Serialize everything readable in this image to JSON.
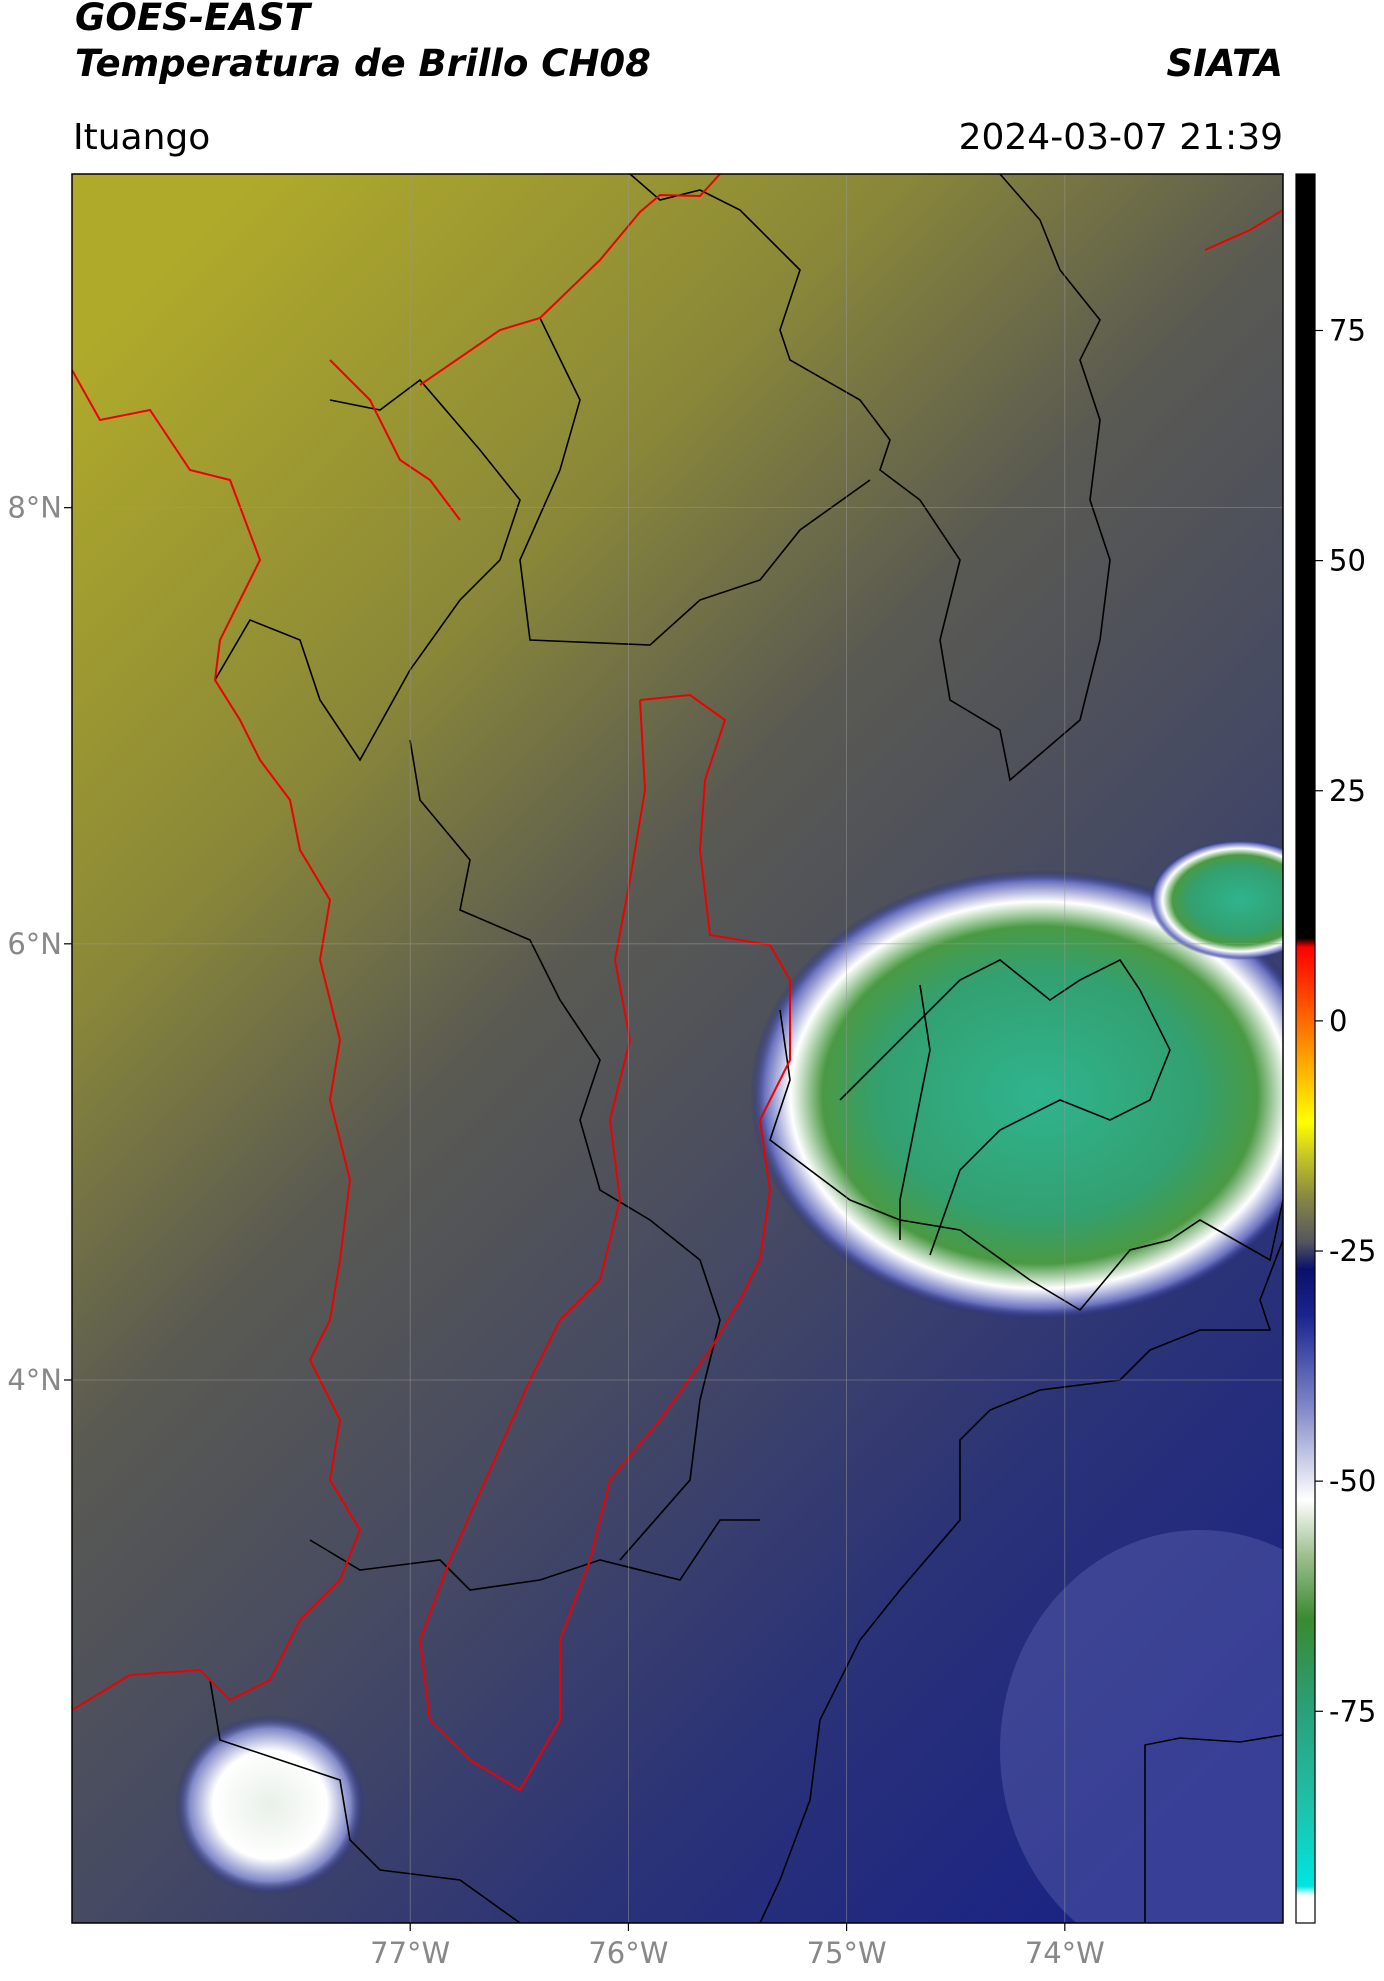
{
  "header": {
    "title": "GOES-EAST",
    "subtitle": "Temperatura de Brillo CH08",
    "source": "SIATA",
    "region": "Ituango",
    "datetime": "2024-03-07 21:39"
  },
  "map": {
    "xlim": [
      -78.55,
      -73.0
    ],
    "ylim": [
      1.51,
      9.53
    ],
    "xticks": [
      {
        "value": -77,
        "label": "77°W"
      },
      {
        "value": -76,
        "label": "76°W"
      },
      {
        "value": -75,
        "label": "75°W"
      },
      {
        "value": -74,
        "label": "74°W"
      }
    ],
    "yticks": [
      {
        "value": 8,
        "label": "8°N"
      },
      {
        "value": 6,
        "label": "6°N"
      },
      {
        "value": 4,
        "label": "4°N"
      }
    ],
    "grid": true
  },
  "colorbar": {
    "lim": [
      -98,
      92
    ],
    "ticks": [
      75,
      50,
      25,
      0,
      -25,
      -50,
      -75
    ],
    "stops": [
      {
        "value": -98,
        "color": "#ffffff"
      },
      {
        "value": -95,
        "color": "#ffffff"
      },
      {
        "value": -94,
        "color": "#00e5e0"
      },
      {
        "value": -85,
        "color": "#1fc0a8"
      },
      {
        "value": -75,
        "color": "#2aa07a"
      },
      {
        "value": -65,
        "color": "#3a8a30"
      },
      {
        "value": -58,
        "color": "#9fc090"
      },
      {
        "value": -52,
        "color": "#ffffff"
      },
      {
        "value": -42,
        "color": "#8088c8"
      },
      {
        "value": -32,
        "color": "#1a2490"
      },
      {
        "value": -27,
        "color": "#0a106a"
      },
      {
        "value": -24,
        "color": "#555560"
      },
      {
        "value": -19,
        "color": "#8a8a40"
      },
      {
        "value": -14,
        "color": "#d0d020"
      },
      {
        "value": -11,
        "color": "#ffff00"
      },
      {
        "value": -4,
        "color": "#ffa000"
      },
      {
        "value": 3,
        "color": "#ff4000"
      },
      {
        "value": 8,
        "color": "#ff0000"
      },
      {
        "value": 9,
        "color": "#000000"
      },
      {
        "value": 92,
        "color": "#000000"
      }
    ]
  }
}
